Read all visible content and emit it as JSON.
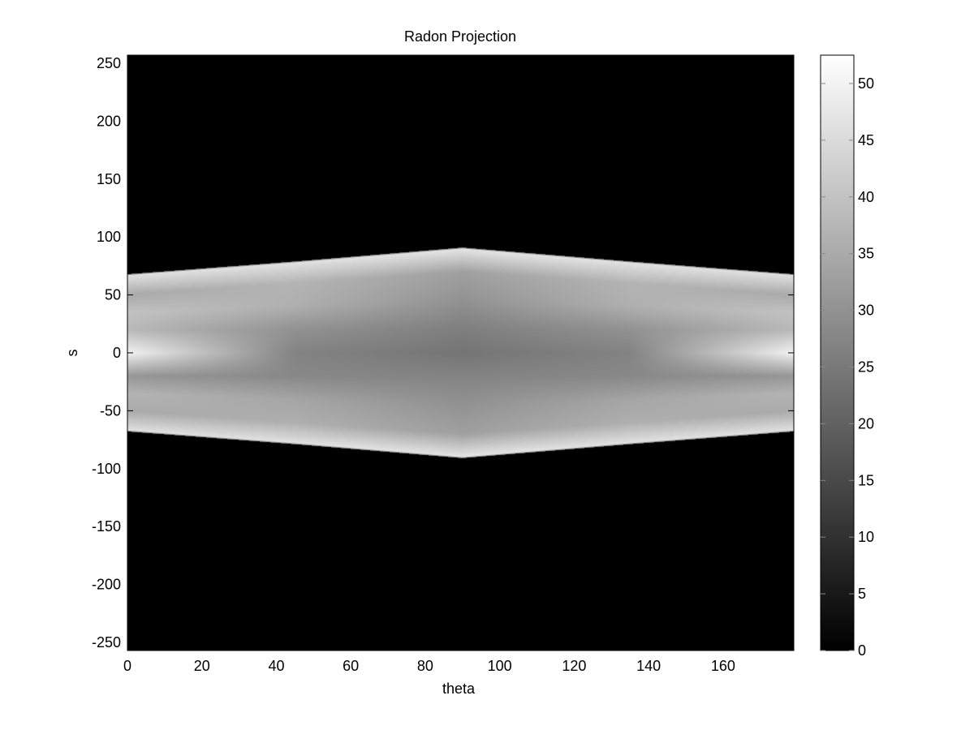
{
  "chart_data": {
    "type": "heatmap",
    "title": "Radon Projection",
    "xlabel": "theta",
    "ylabel": "s",
    "xlim": [
      0,
      179
    ],
    "ylim": [
      -257,
      257
    ],
    "x_ticks": [
      0,
      20,
      40,
      60,
      80,
      100,
      120,
      140,
      160
    ],
    "y_ticks": [
      250,
      200,
      150,
      100,
      50,
      0,
      -50,
      -100,
      -150,
      -200,
      -250
    ],
    "colormap": "gray",
    "background_color": "#000000",
    "colorbar": {
      "range": [
        0,
        52.5
      ],
      "ticks": [
        0,
        5,
        10,
        15,
        20,
        25,
        30,
        35,
        40,
        45,
        50
      ]
    },
    "profile_samples": [
      {
        "theta": 0,
        "edge_s": 68,
        "s_values": [
          -68,
          -50,
          -35,
          -20,
          0,
          20,
          35,
          50,
          68
        ],
        "intensities": [
          47,
          35,
          37,
          31,
          50,
          38,
          40,
          35,
          47
        ]
      },
      {
        "theta": 45,
        "edge_s": 79,
        "s_values": [
          -79,
          -60,
          -40,
          -20,
          0,
          20,
          40,
          60,
          79
        ],
        "intensities": [
          47,
          36,
          34,
          28,
          27,
          30,
          36,
          37,
          47
        ]
      },
      {
        "theta": 90,
        "edge_s": 91,
        "s_values": [
          -91,
          -70,
          -45,
          -20,
          0,
          20,
          45,
          70,
          91
        ],
        "intensities": [
          48,
          33,
          30,
          27,
          24,
          26,
          30,
          33,
          48
        ]
      },
      {
        "theta": 135,
        "edge_s": 79,
        "s_values": [
          -79,
          -60,
          -40,
          -20,
          0,
          20,
          40,
          60,
          79
        ],
        "intensities": [
          47,
          36,
          34,
          28,
          27,
          30,
          36,
          37,
          47
        ]
      },
      {
        "theta": 179,
        "edge_s": 68,
        "s_values": [
          -68,
          -50,
          -35,
          -20,
          0,
          20,
          35,
          50,
          68
        ],
        "intensities": [
          47,
          35,
          37,
          31,
          50,
          38,
          40,
          35,
          47
        ]
      }
    ]
  }
}
